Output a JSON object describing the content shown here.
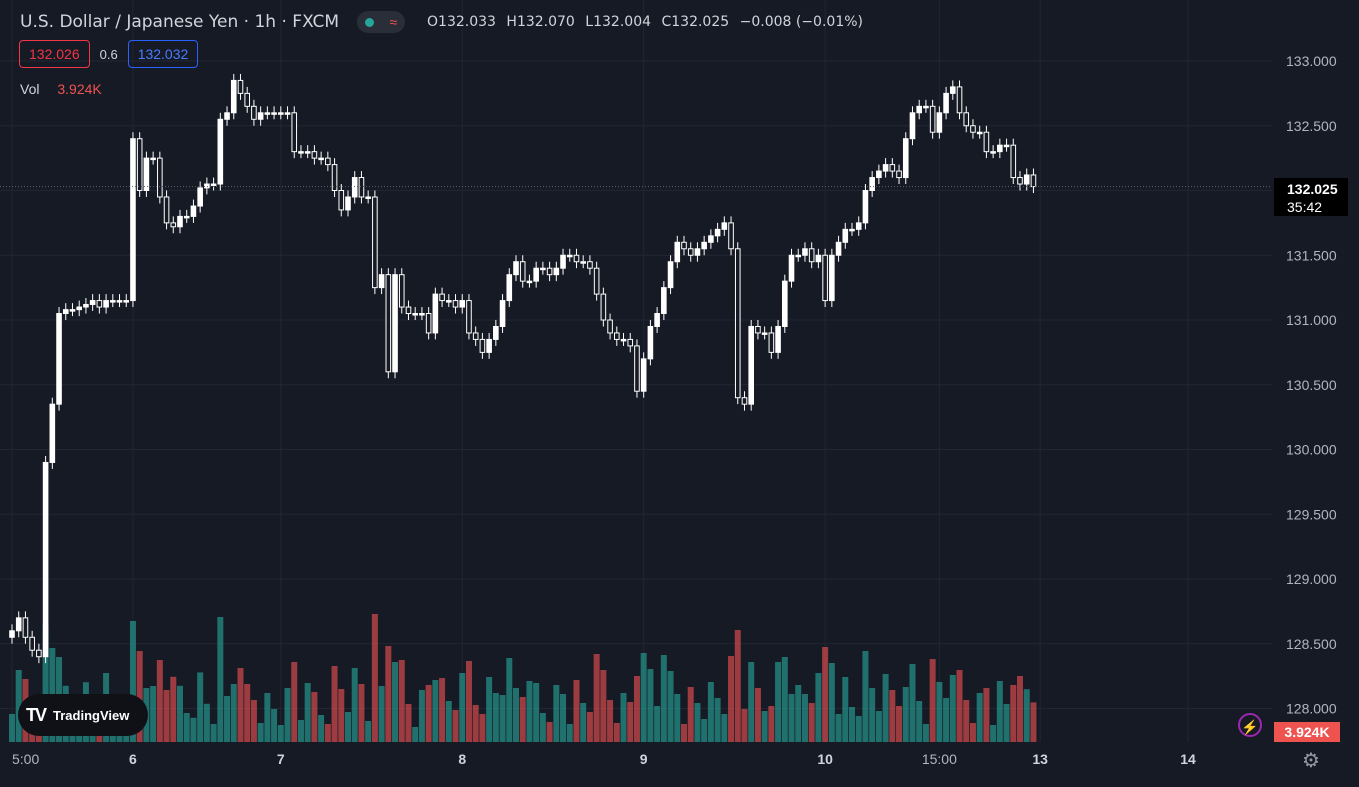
{
  "header": {
    "title": "U.S. Dollar / Japanese Yen · 1h · FXCM",
    "ohlc": {
      "o_label": "O",
      "o": "132.033",
      "h_label": "H",
      "h": "132.070",
      "l_label": "L",
      "l": "132.004",
      "c_label": "C",
      "c": "132.025",
      "change": "−0.008 (−0.01%)"
    },
    "bid": "132.026",
    "spread": "0.6",
    "ask": "132.032"
  },
  "volume_legend": {
    "label": "Vol",
    "value": "3.924K"
  },
  "last_price_tag": {
    "price": "132.025",
    "countdown": "35:42"
  },
  "volume_tag": "3.924K",
  "brand": "TradingView",
  "icons": {
    "bolt": "lightning-icon",
    "gear": "settings-gear-icon",
    "logo": "tradingview-logo-icon"
  },
  "colors": {
    "background": "#161a25",
    "candle_up": "#ffffff",
    "candle_down": "#161a25",
    "vol_up": "#26a69a",
    "vol_down": "#ef5350",
    "bid": "#f23645",
    "ask": "#2962ff"
  },
  "chart_data": {
    "type": "candlestick",
    "title": "U.S. Dollar / Japanese Yen · 1h · FXCM",
    "y_ticks": [
      "133.000",
      "132.500",
      "132.000",
      "131.500",
      "131.000",
      "130.500",
      "130.000",
      "129.500",
      "129.000",
      "128.500",
      "128.000"
    ],
    "ylim": [
      127.75,
      133.2
    ],
    "x_ticks": [
      {
        "label": "5:00",
        "index": 0
      },
      {
        "label": "6",
        "index": 18
      },
      {
        "label": "7",
        "index": 40
      },
      {
        "label": "8",
        "index": 67
      },
      {
        "label": "9",
        "index": 94
      },
      {
        "label": "10",
        "index": 121
      },
      {
        "label": "15:00",
        "index": 138
      },
      {
        "label": "13",
        "index": 153
      },
      {
        "label": "14",
        "index": 175
      }
    ],
    "grid": true,
    "close": [
      128.6,
      128.7,
      128.55,
      128.45,
      128.4,
      129.9,
      130.35,
      131.05,
      131.08,
      131.08,
      131.1,
      131.12,
      131.15,
      131.1,
      131.15,
      131.15,
      131.15,
      131.15,
      132.4,
      132.0,
      132.25,
      132.25,
      131.95,
      131.75,
      131.72,
      131.8,
      131.8,
      131.88,
      132.02,
      132.05,
      132.05,
      132.55,
      132.6,
      132.85,
      132.75,
      132.65,
      132.55,
      132.6,
      132.6,
      132.6,
      132.6,
      132.6,
      132.3,
      132.3,
      132.3,
      132.25,
      132.25,
      132.2,
      132.0,
      131.85,
      131.95,
      132.1,
      131.95,
      131.95,
      131.25,
      131.35,
      130.6,
      131.35,
      131.1,
      131.05,
      131.05,
      131.05,
      130.9,
      131.2,
      131.15,
      131.15,
      131.1,
      131.15,
      130.9,
      130.85,
      130.75,
      130.85,
      130.95,
      131.15,
      131.35,
      131.45,
      131.3,
      131.3,
      131.4,
      131.4,
      131.35,
      131.4,
      131.5,
      131.5,
      131.45,
      131.45,
      131.4,
      131.2,
      131.0,
      130.9,
      130.85,
      130.85,
      130.8,
      130.45,
      130.7,
      130.95,
      131.05,
      131.25,
      131.45,
      131.6,
      131.55,
      131.5,
      131.55,
      131.6,
      131.65,
      131.7,
      131.75,
      131.55,
      130.4,
      130.35,
      130.95,
      130.9,
      130.9,
      130.75,
      130.95,
      131.3,
      131.5,
      131.5,
      131.55,
      131.45,
      131.5,
      131.15,
      131.5,
      131.6,
      131.7,
      131.7,
      131.75,
      132.0,
      132.1,
      132.15,
      132.2,
      132.15,
      132.1,
      132.4,
      132.6,
      132.65,
      132.65,
      132.45,
      132.6,
      132.75,
      132.8,
      132.6,
      132.5,
      132.45,
      132.45,
      132.3,
      132.3,
      132.35,
      132.35,
      132.1,
      132.05,
      132.12,
      132.03
    ]
  }
}
